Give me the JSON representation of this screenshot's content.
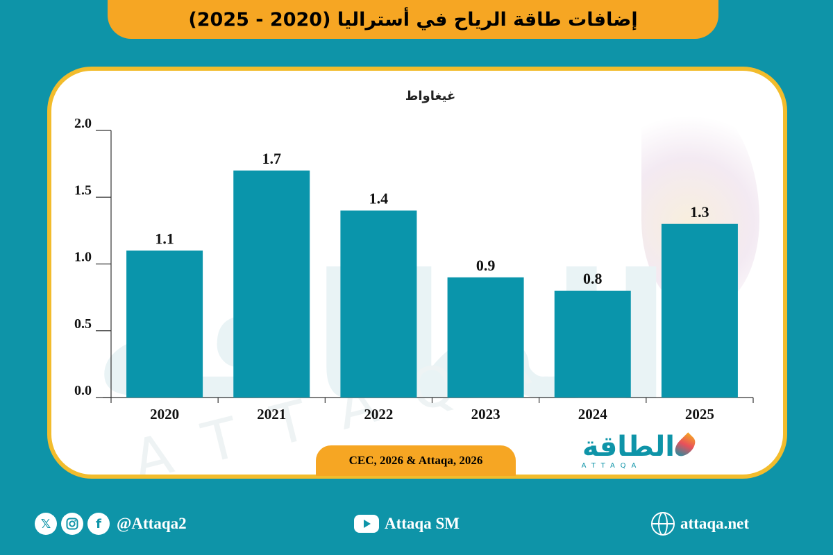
{
  "title": "إضافات طاقة الرياح في أستراليا (2020 - 2025)",
  "source": "CEC, 2026 & Attaqa, 2026",
  "logo": {
    "arabic": "الطاقة",
    "latin": "ATTAQA"
  },
  "watermark": {
    "arabic": "الطاقة",
    "latin": "ATTAQA"
  },
  "footer": {
    "social_handle": "@Attaqa2",
    "youtube": "Attaqa SM",
    "website": "attaqa.net",
    "icons": [
      "x-icon",
      "instagram-icon",
      "facebook-icon",
      "youtube-icon",
      "globe-icon"
    ]
  },
  "colors": {
    "background": "#0e94a8",
    "bar": "#0a95ab",
    "accent": "#f6a623",
    "panel_border": "#f2bc2c"
  },
  "chart_data": {
    "type": "bar",
    "title": "",
    "ylabel": "غيغاواط",
    "xlabel": "",
    "categories": [
      "2020",
      "2021",
      "2022",
      "2023",
      "2024",
      "2025"
    ],
    "values": [
      1.1,
      1.7,
      1.4,
      0.9,
      0.8,
      1.3
    ],
    "value_labels": [
      "1.1",
      "1.7",
      "1.4",
      "0.9",
      "0.8",
      "1.3"
    ],
    "yticks": [
      0,
      0.5,
      1,
      1.5,
      2
    ],
    "ytick_labels": [
      "0.0",
      "0.5",
      "1.0",
      "1.5",
      "2.0"
    ],
    "ylim": [
      0,
      2
    ],
    "grid": false,
    "legend": "none"
  }
}
